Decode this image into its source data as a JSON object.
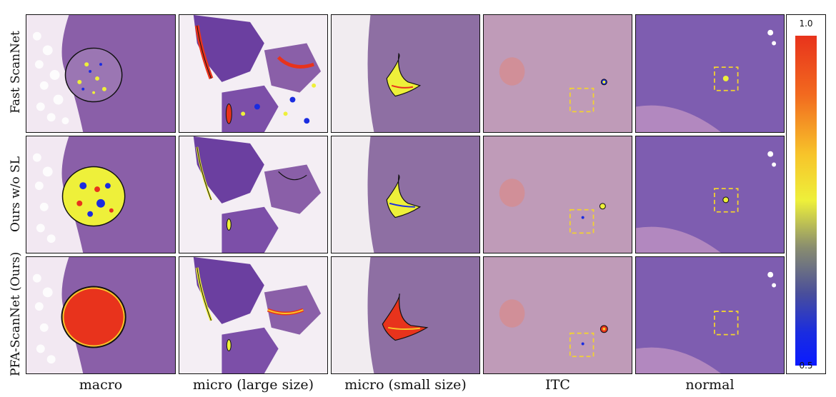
{
  "row_labels": [
    "Fast ScanNet",
    "Ours w/o SL",
    "PFA-ScanNet (Ours)"
  ],
  "column_labels": [
    "macro",
    "micro (large size)",
    "micro (small size)",
    "ITC",
    "normal"
  ],
  "colorbar": {
    "max_label": "1.0",
    "min_label": "0.5"
  },
  "colors": {
    "tissue": "#8a5fa8",
    "tissue_light": "#c9a9c9",
    "fat": "#f4eef4",
    "high": "#e8331c",
    "mid": "#eef03a",
    "low": "#1a2ce0",
    "box": "#f2d230"
  }
}
